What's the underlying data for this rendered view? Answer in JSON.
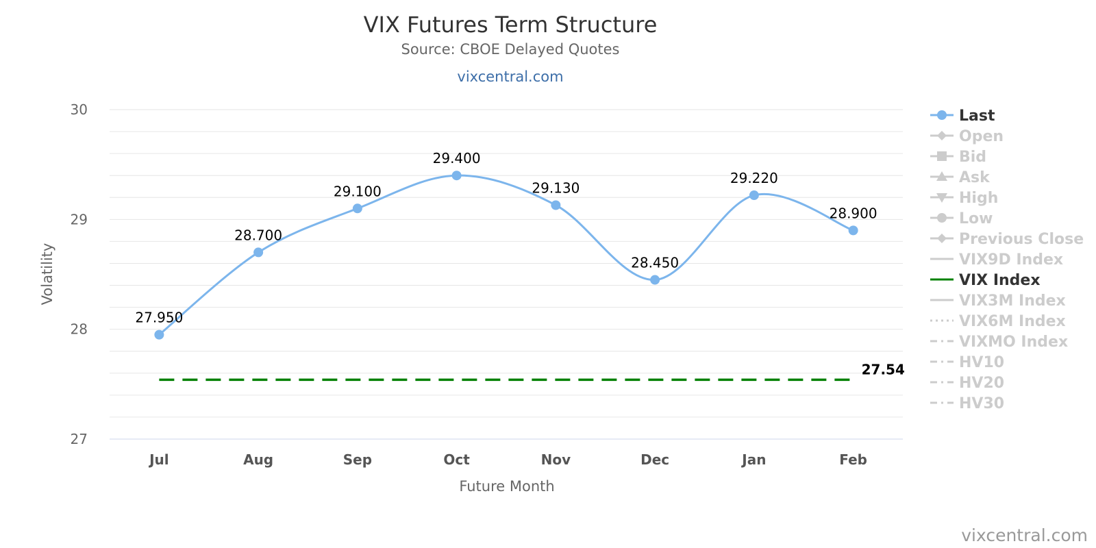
{
  "chart_data": {
    "type": "line",
    "title": "VIX Futures Term Structure",
    "subtitle": "Source: CBOE Delayed Quotes",
    "link": "vixcentral.com",
    "xlabel": "Future Month",
    "ylabel": "Volatility",
    "ylim": [
      27,
      30
    ],
    "yticks": [
      27,
      28,
      29,
      30
    ],
    "grid": true,
    "legend_position": "right",
    "categories": [
      "Jul",
      "Aug",
      "Sep",
      "Oct",
      "Nov",
      "Dec",
      "Jan",
      "Feb"
    ],
    "series": [
      {
        "name": "Last",
        "values": [
          27.95,
          28.7,
          29.1,
          29.4,
          29.13,
          28.45,
          29.22,
          28.9
        ],
        "labels": [
          "27.950",
          "28.700",
          "29.100",
          "29.400",
          "29.130",
          "28.450",
          "29.220",
          "28.900"
        ],
        "color": "#7cb5ec",
        "style": "smooth-line-with-markers"
      },
      {
        "name": "VIX Index",
        "value": 27.54,
        "end_label": "27.54",
        "color": "#008000",
        "style": "dashed"
      }
    ],
    "legend": [
      {
        "name": "Last",
        "active": true,
        "symbol": "circle"
      },
      {
        "name": "Open",
        "active": false,
        "symbol": "diamond"
      },
      {
        "name": "Bid",
        "active": false,
        "symbol": "square"
      },
      {
        "name": "Ask",
        "active": false,
        "symbol": "triangle"
      },
      {
        "name": "High",
        "active": false,
        "symbol": "triangle-down"
      },
      {
        "name": "Low",
        "active": false,
        "symbol": "circle"
      },
      {
        "name": "Previous Close",
        "active": false,
        "symbol": "diamond"
      },
      {
        "name": "VIX9D Index",
        "active": false,
        "symbol": "line"
      },
      {
        "name": "VIX Index",
        "active": true,
        "symbol": "line"
      },
      {
        "name": "VIX3M Index",
        "active": false,
        "symbol": "line"
      },
      {
        "name": "VIX6M Index",
        "active": false,
        "symbol": "dotted"
      },
      {
        "name": "VIXMO Index",
        "active": false,
        "symbol": "dashdot"
      },
      {
        "name": "HV10",
        "active": false,
        "symbol": "dashdot"
      },
      {
        "name": "HV20",
        "active": false,
        "symbol": "dashdot"
      },
      {
        "name": "HV30",
        "active": false,
        "symbol": "dashdot"
      }
    ],
    "colors": {
      "last": "#7cb5ec",
      "vix": "#008000",
      "legend_active_text": "#333333",
      "legend_inactive": "#cccccc",
      "grid": "#e6e6e6",
      "axis": "#ccd6eb"
    }
  },
  "credit": "vixcentral.com"
}
